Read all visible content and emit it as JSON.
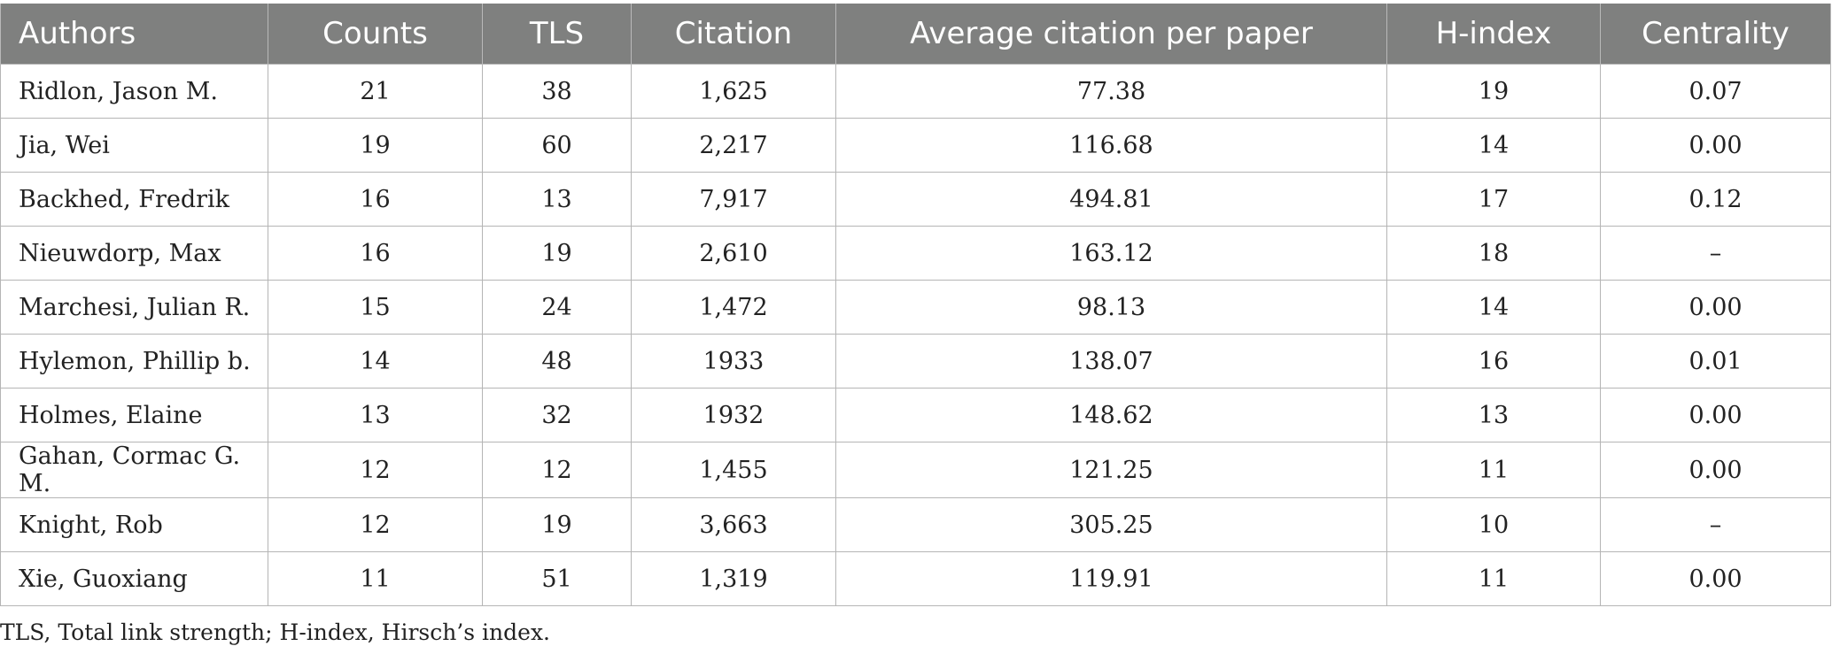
{
  "table": {
    "columns": [
      "Authors",
      "Counts",
      "TLS",
      "Citation",
      "Average citation per paper",
      "H-index",
      "Centrality"
    ],
    "rows": [
      [
        "Ridlon, Jason M.",
        "21",
        "38",
        "1,625",
        "77.38",
        "19",
        "0.07"
      ],
      [
        "Jia, Wei",
        "19",
        "60",
        "2,217",
        "116.68",
        "14",
        "0.00"
      ],
      [
        "Backhed, Fredrik",
        "16",
        "13",
        "7,917",
        "494.81",
        "17",
        "0.12"
      ],
      [
        "Nieuwdorp, Max",
        "16",
        "19",
        "2,610",
        "163.12",
        "18",
        "–"
      ],
      [
        "Marchesi, Julian R.",
        "15",
        "24",
        "1,472",
        "98.13",
        "14",
        "0.00"
      ],
      [
        "Hylemon, Phillip b.",
        "14",
        "48",
        "1933",
        "138.07",
        "16",
        "0.01"
      ],
      [
        "Holmes, Elaine",
        "13",
        "32",
        "1932",
        "148.62",
        "13",
        "0.00"
      ],
      [
        "Gahan, Cormac G. M.",
        "12",
        "12",
        "1,455",
        "121.25",
        "11",
        "0.00"
      ],
      [
        "Knight, Rob",
        "12",
        "19",
        "3,663",
        "305.25",
        "10",
        "–"
      ],
      [
        "Xie, Guoxiang",
        "11",
        "51",
        "1,319",
        "119.91",
        "11",
        "0.00"
      ]
    ]
  },
  "footnote": "TLS, Total link strength; H-index, Hirsch’s index.",
  "colors": {
    "header_bg": "#7f807f",
    "header_text": "#ffffff",
    "grid": "#b5b5b5"
  }
}
